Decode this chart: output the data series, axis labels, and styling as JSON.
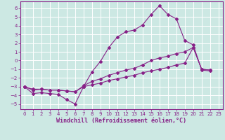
{
  "xlabel": "Windchill (Refroidissement éolien,°C)",
  "background_color": "#cce8e3",
  "grid_color": "#ffffff",
  "line_color": "#882288",
  "spine_color": "#882288",
  "xlim": [
    -0.5,
    23.5
  ],
  "ylim": [
    -5.6,
    6.8
  ],
  "xticks": [
    0,
    1,
    2,
    3,
    4,
    5,
    6,
    7,
    8,
    9,
    10,
    11,
    12,
    13,
    14,
    15,
    16,
    17,
    18,
    19,
    20,
    21,
    22,
    23
  ],
  "yticks": [
    -5,
    -4,
    -3,
    -2,
    -1,
    0,
    1,
    2,
    3,
    4,
    5,
    6
  ],
  "line1_x": [
    0,
    1,
    2,
    3,
    4,
    5,
    6,
    7,
    8,
    9,
    10,
    11,
    12,
    13,
    14,
    15,
    16,
    17,
    18,
    19,
    20,
    21,
    22
  ],
  "line1_y": [
    -3,
    -3.8,
    -3.7,
    -3.8,
    -3.9,
    -4.5,
    -5.0,
    -3.0,
    -1.3,
    -0.1,
    1.5,
    2.7,
    3.3,
    3.5,
    4.1,
    5.3,
    6.3,
    5.3,
    4.8,
    2.3,
    1.8,
    -1.1,
    -1.2
  ],
  "line2_x": [
    0,
    1,
    2,
    3,
    4,
    5,
    6,
    7,
    8,
    9,
    10,
    11,
    12,
    13,
    14,
    15,
    16,
    17,
    18,
    19,
    20,
    21,
    22
  ],
  "line2_y": [
    -3,
    -3.3,
    -3.3,
    -3.4,
    -3.4,
    -3.5,
    -3.6,
    -2.9,
    -2.4,
    -2.1,
    -1.7,
    -1.4,
    -1.1,
    -0.9,
    -0.5,
    0.0,
    0.3,
    0.5,
    0.8,
    1.0,
    1.5,
    -1.0,
    -1.1
  ],
  "line3_x": [
    0,
    1,
    2,
    3,
    4,
    5,
    6,
    7,
    8,
    9,
    10,
    11,
    12,
    13,
    14,
    15,
    16,
    17,
    18,
    19,
    20,
    21,
    22
  ],
  "line3_y": [
    -3,
    -3.4,
    -3.3,
    -3.4,
    -3.4,
    -3.5,
    -3.6,
    -3.0,
    -2.8,
    -2.6,
    -2.3,
    -2.1,
    -1.9,
    -1.7,
    -1.4,
    -1.2,
    -1.0,
    -0.8,
    -0.5,
    -0.3,
    1.5,
    -1.0,
    -1.1
  ],
  "tick_fontsize": 5,
  "label_fontsize": 6,
  "marker_size": 2.0,
  "line_width": 0.8
}
